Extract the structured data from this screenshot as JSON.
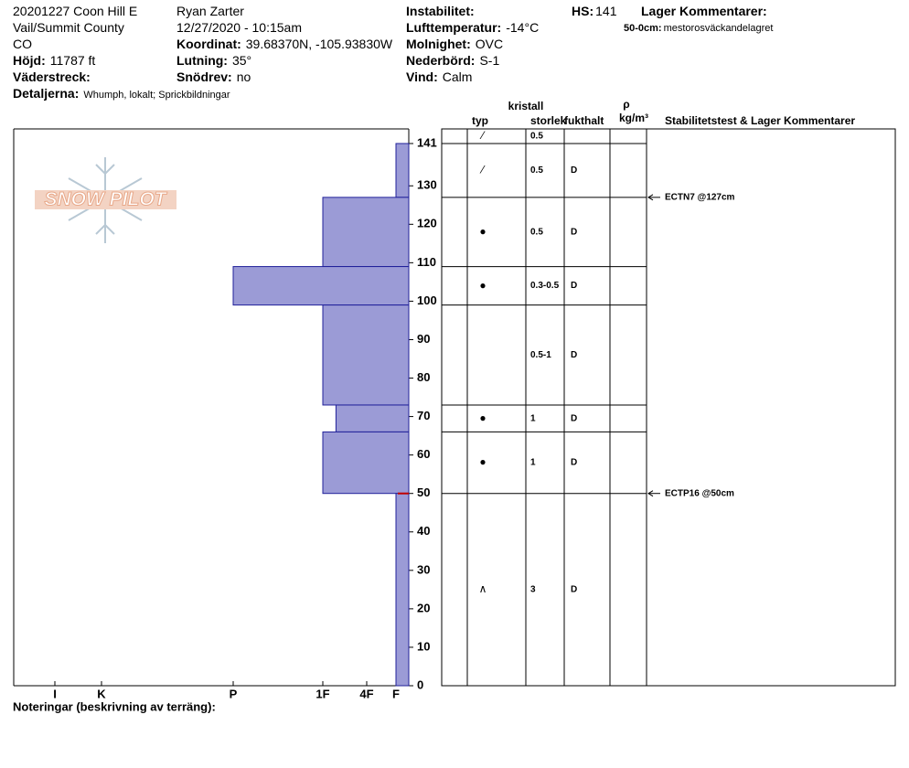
{
  "header": {
    "site": "20201227 Coon Hill E",
    "location": "Vail/Summit County",
    "state": "CO",
    "elevation_label": "Höjd:",
    "elevation": "11787 ft",
    "aspect_label": "Väderstreck:",
    "details_label": "Detaljerna:",
    "details": "Whumph, lokalt;  Sprickbildningar",
    "observer": "Ryan Zarter",
    "datetime": "12/27/2020 - 10:15am",
    "coord_label": "Koordinat:",
    "coord": "39.68370N, -105.93830W",
    "slope_label": "Lutning:",
    "slope": "35°",
    "drift_label": "Snödrev:",
    "drift": "no",
    "instability_label": "Instabilitet:",
    "airtemp_label": "Lufttemperatur:",
    "airtemp": "-14°C",
    "sky_label": "Molnighet:",
    "sky": "OVC",
    "precip_label": "Nederbörd:",
    "precip": "S-1",
    "wind_label": "Vind:",
    "wind": "Calm",
    "hs_label": "HS:",
    "hs": 141,
    "layer_comments_label": "Lager Kommentarer:",
    "layer_comment_depth": "50-0cm:",
    "layer_comment": "mestorosväckandelagret"
  },
  "logo": "SNOW PILOT",
  "columns": {
    "crystal": "kristall",
    "type": "typ",
    "size": "storlek",
    "moisture": "fukthalt",
    "density": "ρ",
    "density_unit": "kg/m³",
    "comments": "Stabilitetstest & Lager Kommentarer"
  },
  "notes_label": "Noteringar (beskrivning av terräng):",
  "chart_data": {
    "type": "snow-profile",
    "ylim": [
      0,
      144.8
    ],
    "yticks": [
      0,
      10,
      20,
      30,
      40,
      50,
      60,
      70,
      80,
      90,
      100,
      110,
      120,
      130,
      141
    ],
    "hardness_ticks": [
      {
        "value": 1,
        "label": "F"
      },
      {
        "value": 2,
        "label": "4F"
      },
      {
        "value": 3,
        "label": "1F"
      },
      {
        "value": 4,
        "label": "P"
      },
      {
        "value": 5,
        "label": "K"
      },
      {
        "value": 6,
        "label": "I"
      }
    ],
    "color": "#9b9bd6",
    "edge_color": "#20209a",
    "surface_row": {
      "grain": "⁄",
      "size": "0.5"
    },
    "layers": [
      {
        "top": 141,
        "bottom": 127,
        "hardness": 1,
        "grain": "⁄",
        "size": "0.5",
        "moisture": "D"
      },
      {
        "top": 127,
        "bottom": 109,
        "hardness": 3,
        "grain": "●",
        "size": "0.5",
        "moisture": "D"
      },
      {
        "top": 109,
        "bottom": 99,
        "hardness": 4,
        "grain": "●",
        "size": "0.3-0.5",
        "moisture": "D"
      },
      {
        "top": 99,
        "bottom": 73,
        "hardness": 3,
        "size": "0.5-1",
        "moisture": "D"
      },
      {
        "top": 73,
        "bottom": 66,
        "hardness": 2.7,
        "grain": "●",
        "size": "1",
        "moisture": "D"
      },
      {
        "top": 66,
        "bottom": 50,
        "hardness": 3,
        "grain": "●",
        "size": "1",
        "moisture": "D"
      },
      {
        "top": 50,
        "bottom": 0,
        "hardness": 1,
        "grain": "∧",
        "size": "3",
        "moisture": "D"
      }
    ],
    "tests": [
      {
        "label": "ECTN7 @127cm",
        "depth": 127
      },
      {
        "label": "ECTP16 @50cm",
        "depth": 50
      }
    ],
    "marker_depth": 50,
    "marker_color": "#c00000"
  }
}
